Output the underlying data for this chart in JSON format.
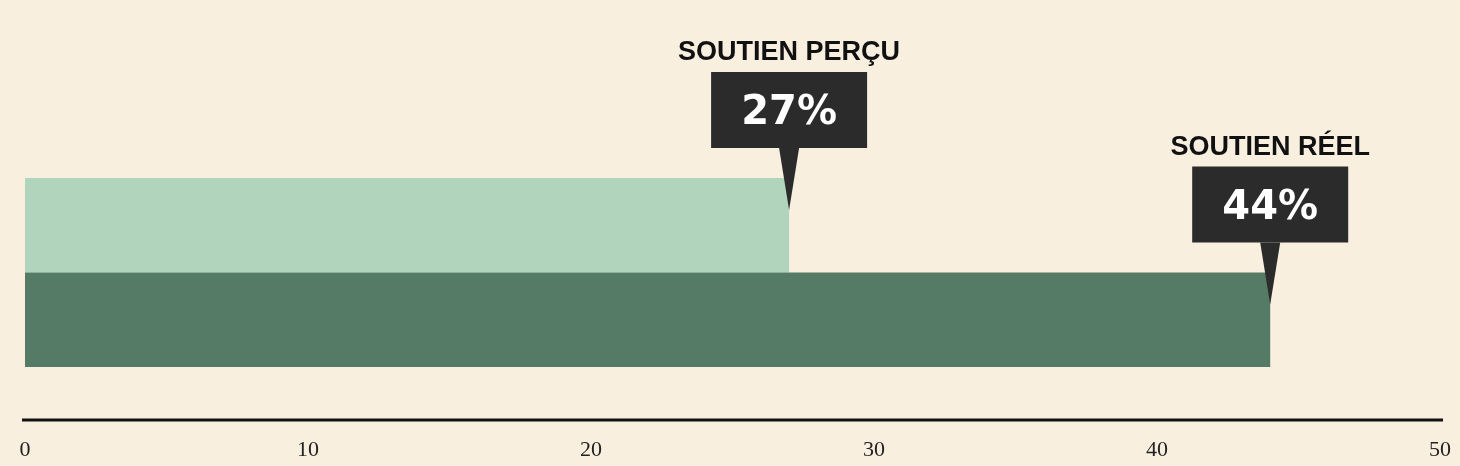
{
  "chart_data": {
    "type": "bar",
    "orientation": "horizontal",
    "categories": [
      null
    ],
    "series": [
      {
        "color": "#b0d4bc",
        "values": [
          27
        ],
        "value_labels": [
          "27%"
        ]
      },
      {
        "color": "#557b66",
        "values": [
          44
        ],
        "value_labels": [
          "44%"
        ]
      }
    ],
    "annotations": [
      "SOUTIEN PERÇU",
      "SOUTIEN RÉEL"
    ],
    "xlim": [
      0,
      50
    ],
    "xticks": [
      0,
      10,
      20,
      30,
      40,
      50
    ],
    "grid": false
  }
}
